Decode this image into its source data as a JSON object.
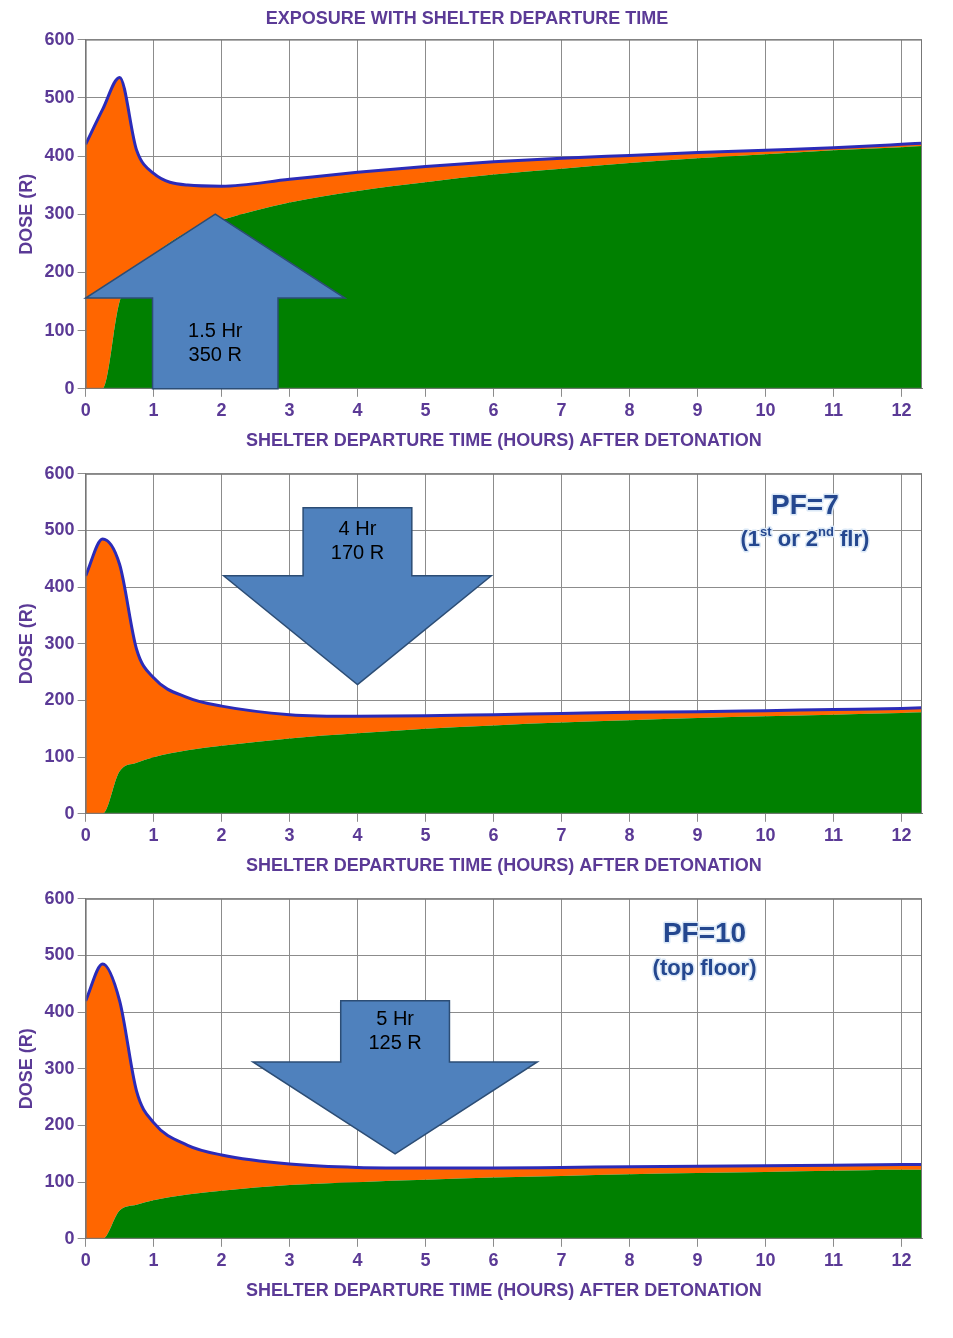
{
  "chart_data": [
    {
      "type": "area",
      "title": "EXPOSURE WITH SHELTER DEPARTURE TIME",
      "x_label": "SHELTER DEPARTURE TIME (HOURS) AFTER DETONATION",
      "y_label": "DOSE (R)",
      "x": [
        0,
        0.25,
        0.5,
        0.75,
        1,
        1.5,
        2,
        3,
        4,
        5,
        6,
        7,
        8,
        9,
        10,
        11,
        12,
        12.3
      ],
      "series": [
        {
          "color": "#008000",
          "values": [
            0,
            0,
            150,
            200,
            230,
            270,
            290,
            320,
            340,
            355,
            368,
            378,
            388,
            396,
            403,
            410,
            415,
            417
          ]
        },
        {
          "color": "#ff6600",
          "values": [
            420,
            480,
            385,
            210,
            140,
            80,
            58,
            40,
            32,
            27,
            22,
            18,
            13,
            10,
            7,
            4,
            5,
            5
          ]
        }
      ],
      "stacked": true,
      "grid": true,
      "xlim": [
        0,
        12.3
      ],
      "xticks": [
        0,
        1,
        2,
        3,
        4,
        5,
        6,
        7,
        8,
        9,
        10,
        11,
        12
      ],
      "ylim": [
        0,
        600
      ],
      "yticks": [
        0,
        100,
        200,
        300,
        400,
        500,
        600
      ],
      "annotations": [
        "1.5 Hr\n350 R"
      ]
    },
    {
      "type": "area",
      "x_label": "SHELTER DEPARTURE TIME (HOURS) AFTER DETONATION",
      "y_label": "DOSE (R)",
      "x": [
        0,
        0.25,
        0.5,
        0.75,
        1,
        1.5,
        2,
        3,
        4,
        5,
        6,
        7,
        8,
        9,
        10,
        11,
        12,
        12.3
      ],
      "series": [
        {
          "color": "#008000",
          "values": [
            0,
            0,
            75,
            90,
            100,
            112,
            120,
            133,
            142,
            150,
            156,
            161,
            165,
            169,
            172,
            175,
            178,
            179
          ]
        },
        {
          "color": "#ff6600",
          "values": [
            420,
            485,
            365,
            200,
            140,
            93,
            70,
            42,
            30,
            23,
            19,
            16,
            14,
            11,
            10,
            9,
            8,
            8
          ]
        }
      ],
      "stacked": true,
      "grid": true,
      "xlim": [
        0,
        12.3
      ],
      "xticks": [
        0,
        1,
        2,
        3,
        4,
        5,
        6,
        7,
        8,
        9,
        10,
        11,
        12
      ],
      "ylim": [
        0,
        600
      ],
      "yticks": [
        0,
        100,
        200,
        300,
        400,
        500,
        600
      ],
      "annotations": [
        "4 Hr\n170 R",
        "PF=7",
        "(1st or 2nd flr)"
      ]
    },
    {
      "type": "area",
      "x_label": "SHELTER DEPARTURE TIME (HOURS) AFTER DETONATION",
      "y_label": "DOSE (R)",
      "x": [
        0,
        0.25,
        0.5,
        0.75,
        1,
        1.5,
        2,
        3,
        4,
        5,
        6,
        7,
        8,
        9,
        10,
        11,
        12,
        12.3
      ],
      "series": [
        {
          "color": "#008000",
          "values": [
            0,
            0,
            50,
            60,
            68,
            78,
            85,
            95,
            100,
            104,
            108,
            111,
            114,
            116,
            118,
            120,
            122,
            122
          ]
        },
        {
          "color": "#ff6600",
          "values": [
            420,
            485,
            370,
            200,
            137,
            87,
            63,
            37,
            26,
            21,
            17,
            15,
            13,
            12,
            11,
            10,
            9,
            9
          ]
        }
      ],
      "stacked": true,
      "grid": true,
      "xlim": [
        0,
        12.3
      ],
      "xticks": [
        0,
        1,
        2,
        3,
        4,
        5,
        6,
        7,
        8,
        9,
        10,
        11,
        12
      ],
      "ylim": [
        0,
        600
      ],
      "yticks": [
        0,
        100,
        200,
        300,
        400,
        500,
        600
      ],
      "annotations": [
        "5 Hr\n125 R",
        "PF=10",
        "(top floor)"
      ]
    }
  ]
}
